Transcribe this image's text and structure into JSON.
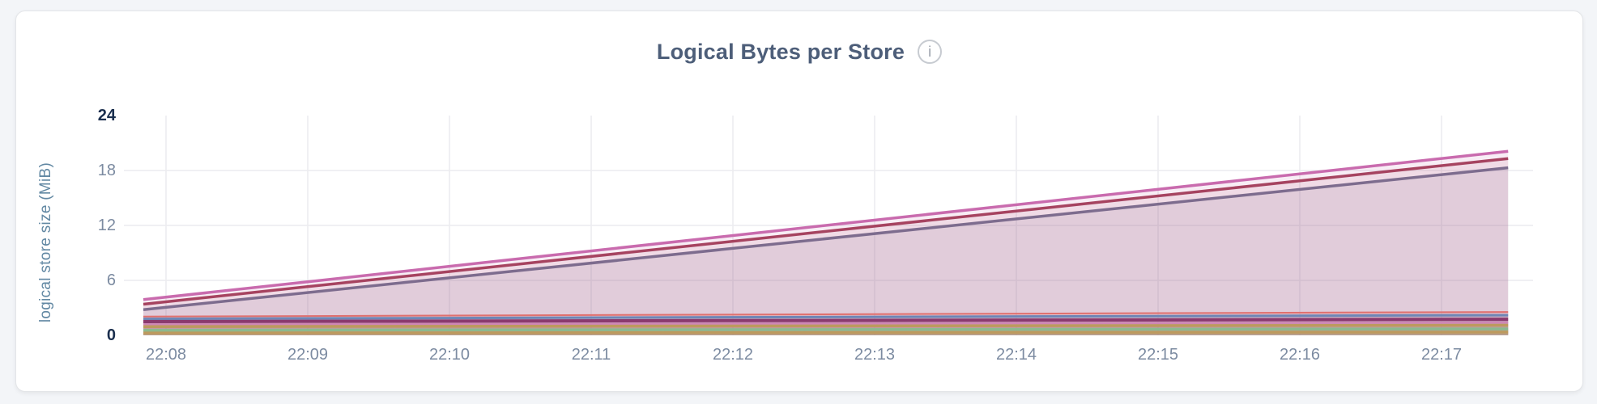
{
  "header": {
    "title": "Logical Bytes per Store",
    "info_glyph": "i"
  },
  "palette": {
    "page_bg": "#F3F5F8",
    "card_bg": "#FFFFFF",
    "card_border": "#E3E5E8",
    "title_color": "#4D5E79",
    "tick_color": "#7C8BA1",
    "tick_strong": "#1B2F4E",
    "ylabel_color": "#6288A3",
    "grid_color": "#ECECEF",
    "info_border": "#C7CBD1",
    "info_color": "#9AA1AB"
  },
  "chart_data": {
    "type": "area",
    "title": "Logical Bytes per Store",
    "xlabel": "",
    "ylabel": "logical store size (MiB)",
    "ylim": [
      0,
      24
    ],
    "y_ticks": [
      0,
      6,
      12,
      18,
      24
    ],
    "y_ticks_bold": [
      0,
      24
    ],
    "x_tick_labels": [
      "22:08",
      "22:09",
      "22:10",
      "22:11",
      "22:12",
      "22:13",
      "22:14",
      "22:15",
      "22:16",
      "22:17"
    ],
    "x_tick_minutes": [
      8,
      9,
      10,
      11,
      12,
      13,
      14,
      15,
      16,
      17
    ],
    "x_range_minutes": [
      7.84,
      17.47
    ],
    "grid": "on",
    "legend": "none",
    "series": [
      {
        "name": "store-slate",
        "color": "#6F7390",
        "stroke_width": 3.5,
        "fill_opacity": 0.13,
        "points": [
          [
            7.84,
            2.8
          ],
          [
            17.47,
            18.3
          ]
        ]
      },
      {
        "name": "store-darkred",
        "color": "#A23E56",
        "stroke_width": 3.5,
        "fill_opacity": 0.1,
        "points": [
          [
            7.84,
            3.4
          ],
          [
            17.47,
            19.3
          ]
        ]
      },
      {
        "name": "store-pink",
        "color": "#C96BAE",
        "stroke_width": 3.5,
        "fill_opacity": 0.12,
        "points": [
          [
            7.84,
            3.9
          ],
          [
            17.47,
            20.1
          ]
        ]
      },
      {
        "name": "store-salmon",
        "color": "#E0706E",
        "stroke_width": 2.0,
        "fill_opacity": 0.18,
        "points": [
          [
            7.84,
            2.05
          ],
          [
            17.47,
            2.55
          ]
        ]
      },
      {
        "name": "store-blue",
        "color": "#6E86B6",
        "stroke_width": 3.0,
        "fill_opacity": 0.18,
        "points": [
          [
            7.84,
            1.8
          ],
          [
            17.47,
            2.2
          ]
        ]
      },
      {
        "name": "store-plum",
        "color": "#8A3A6E",
        "stroke_width": 4.0,
        "fill_opacity": 0.15,
        "points": [
          [
            7.84,
            1.5
          ],
          [
            17.47,
            1.75
          ]
        ]
      },
      {
        "name": "store-lightpink",
        "color": "#CF86B6",
        "stroke_width": 2.5,
        "fill_opacity": 0.2,
        "points": [
          [
            7.84,
            1.2
          ],
          [
            17.47,
            1.4
          ]
        ]
      },
      {
        "name": "store-tan",
        "color": "#BD9A5E",
        "stroke_width": 3.5,
        "fill_opacity": 0.2,
        "points": [
          [
            7.84,
            0.95
          ],
          [
            17.47,
            1.1
          ]
        ]
      },
      {
        "name": "store-green",
        "color": "#8CB98E",
        "stroke_width": 3.5,
        "fill_opacity": 0.2,
        "points": [
          [
            7.84,
            0.55
          ],
          [
            17.47,
            0.7
          ]
        ]
      },
      {
        "name": "store-tan2",
        "color": "#BD9A5E",
        "stroke_width": 3.5,
        "fill_opacity": 0.25,
        "points": [
          [
            7.84,
            0.25
          ],
          [
            17.47,
            0.35
          ]
        ]
      }
    ]
  }
}
